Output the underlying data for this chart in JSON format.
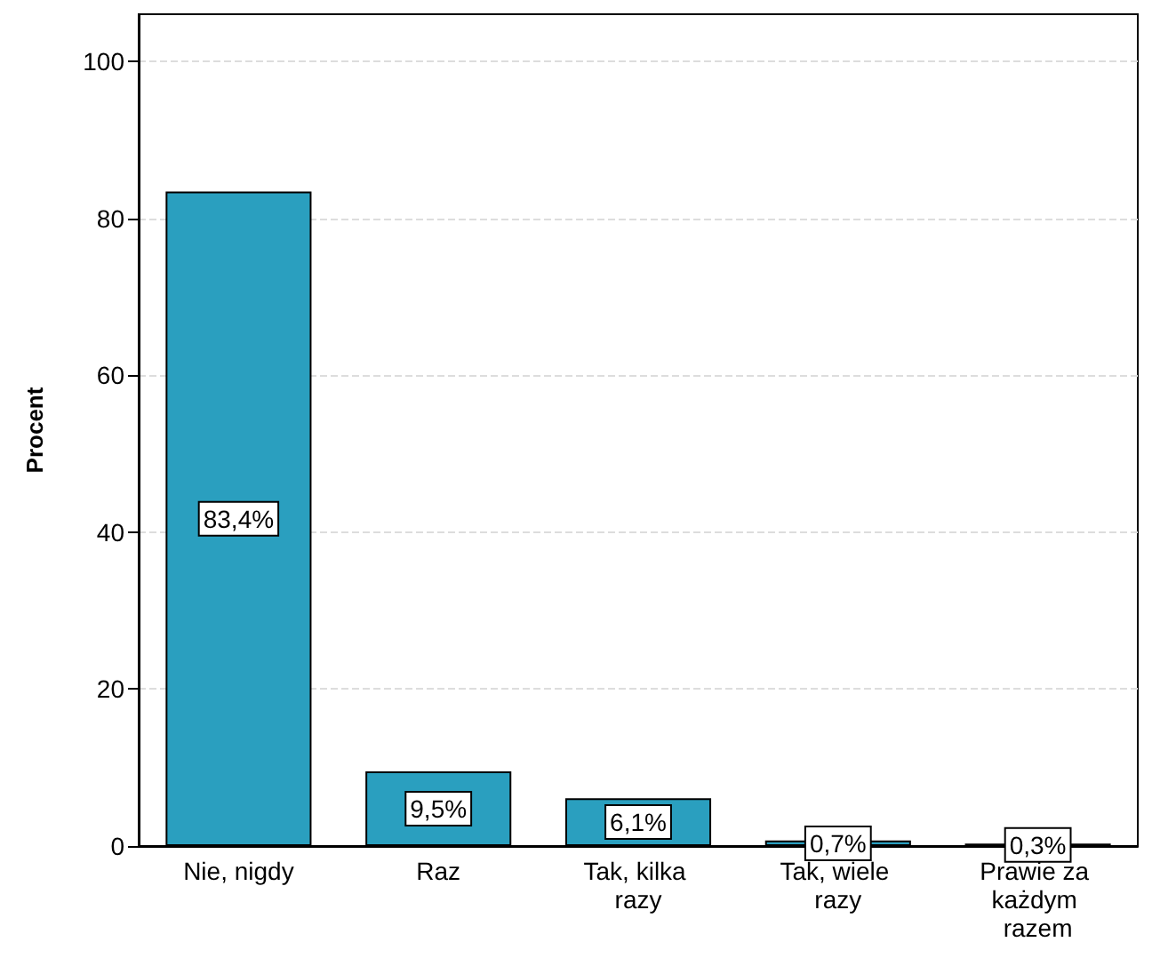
{
  "chart_data": {
    "type": "bar",
    "ylabel": "Procent",
    "categories": [
      "Nie, nigdy",
      "Raz",
      "Tak, kilka razy",
      "Tak, wiele razy",
      "Prawie za każdym razem"
    ],
    "values": [
      83.4,
      9.5,
      6.1,
      0.7,
      0.3
    ],
    "value_labels": [
      "83,4%",
      "9,5%",
      "6,1%",
      "0,7%",
      "0,3%"
    ],
    "color": "#2a9fbf",
    "ylim": [
      0,
      106
    ],
    "yticks": [
      0,
      20,
      40,
      60,
      80,
      100
    ],
    "grid": "y"
  }
}
